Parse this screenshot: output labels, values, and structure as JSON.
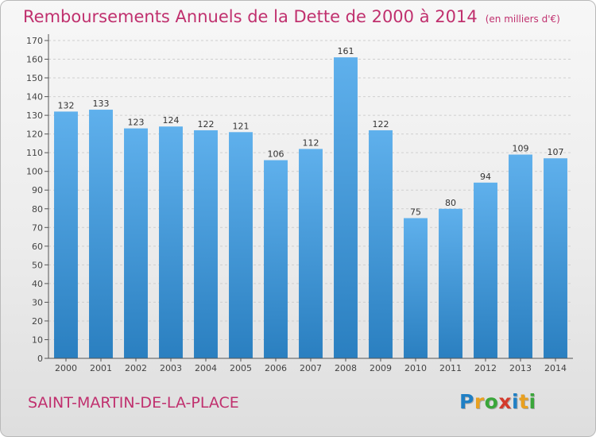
{
  "header": {
    "title": "Remboursements Annuels de la Dette de 2000 à 2014",
    "unit": "(en milliers d'€)"
  },
  "footer": {
    "commune": "SAINT-MARTIN-DE-LA-PLACE",
    "logo_letters": [
      "P",
      "r",
      "o",
      "x",
      "i",
      "t",
      "i"
    ],
    "logo_colors": [
      "#1f7fc4",
      "#e8a020",
      "#3aa63a",
      "#d33a2c",
      "#1f7fc4",
      "#e8a020",
      "#3aa63a"
    ]
  },
  "colors": {
    "bar_light": "#5fb0ec",
    "bar_dark": "#2a7fc0",
    "grid": "#cfcfcf",
    "axis": "#555555"
  },
  "chart_data": {
    "type": "bar",
    "title": "Remboursements Annuels de la Dette de 2000 à 2014",
    "ylabel": "en milliers d'€",
    "xlabel": "",
    "categories": [
      "2000",
      "2001",
      "2002",
      "2003",
      "2004",
      "2005",
      "2006",
      "2007",
      "2008",
      "2009",
      "2010",
      "2011",
      "2012",
      "2013",
      "2014"
    ],
    "values": [
      132,
      133,
      123,
      124,
      122,
      121,
      106,
      112,
      161,
      122,
      75,
      80,
      94,
      109,
      107
    ],
    "ylim": [
      0,
      170
    ],
    "yticks": [
      0,
      10,
      20,
      30,
      40,
      50,
      60,
      70,
      80,
      90,
      100,
      110,
      120,
      130,
      140,
      150,
      160,
      170
    ],
    "grid": true,
    "data_labels": true
  }
}
